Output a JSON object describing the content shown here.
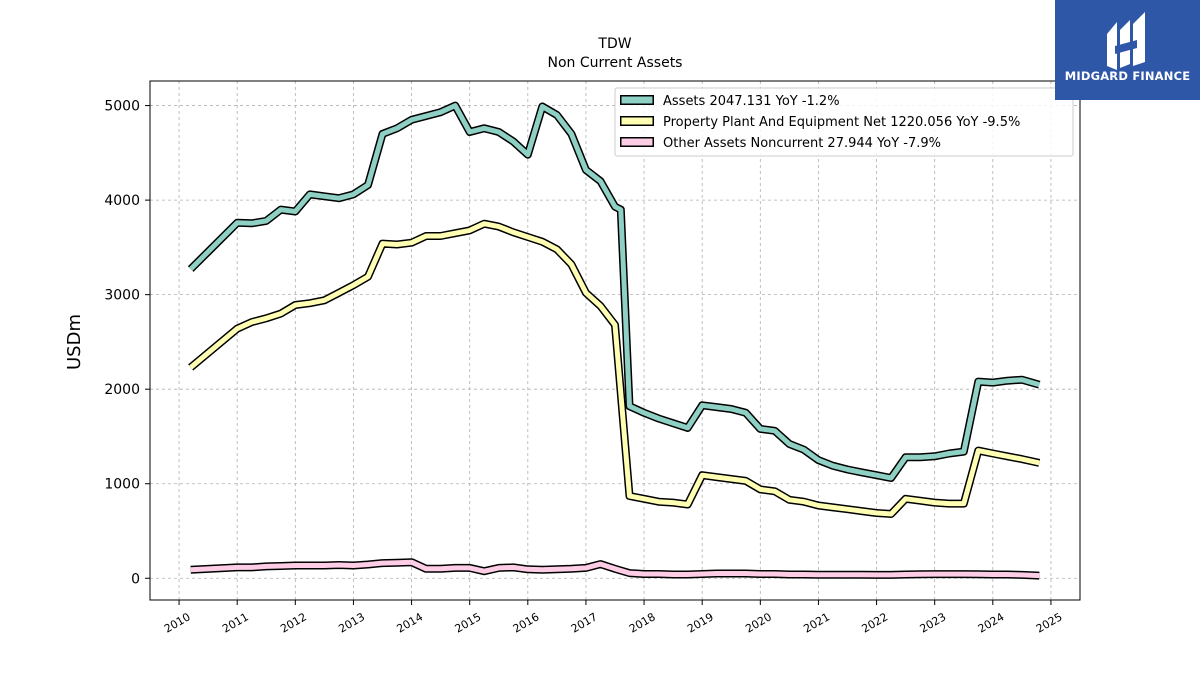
{
  "brand": {
    "name": "MIDGARD FINANCE",
    "color": "#2f57a8"
  },
  "chart_data": {
    "type": "line",
    "title": "TDW",
    "subtitle": "Non Current  Assets",
    "ylabel": "USDm",
    "xlabel": "",
    "xlim": [
      2009.5,
      2025.5
    ],
    "ylim": [
      -230,
      5260
    ],
    "x_ticks": [
      2010,
      2011,
      2012,
      2013,
      2014,
      2015,
      2016,
      2017,
      2018,
      2019,
      2020,
      2021,
      2022,
      2023,
      2024,
      2025
    ],
    "y_ticks": [
      0,
      1000,
      2000,
      3000,
      4000,
      5000
    ],
    "grid": true,
    "legend_position": "top-right",
    "series": [
      {
        "name": "Assets  2047.131 YoY -1.2%",
        "color": "#8ed0c3",
        "x": [
          2010.2,
          2011.0,
          2011.25,
          2011.5,
          2011.75,
          2012.0,
          2012.25,
          2012.5,
          2012.75,
          2013.0,
          2013.25,
          2013.5,
          2013.75,
          2014.0,
          2014.25,
          2014.5,
          2014.75,
          2015.0,
          2015.25,
          2015.5,
          2015.75,
          2016.0,
          2016.25,
          2016.5,
          2016.75,
          2017.0,
          2017.25,
          2017.5,
          2017.6,
          2017.75,
          2018.0,
          2018.25,
          2018.5,
          2018.75,
          2019.0,
          2019.25,
          2019.5,
          2019.75,
          2020.0,
          2020.25,
          2020.5,
          2020.75,
          2021.0,
          2021.25,
          2021.5,
          2021.75,
          2022.0,
          2022.25,
          2022.5,
          2022.75,
          2023.0,
          2023.25,
          2023.5,
          2023.75,
          2024.0,
          2024.25,
          2024.5,
          2024.8
        ],
        "values": [
          3270,
          3760,
          3755,
          3780,
          3900,
          3880,
          4060,
          4040,
          4020,
          4060,
          4160,
          4700,
          4760,
          4850,
          4890,
          4930,
          5000,
          4720,
          4760,
          4720,
          4620,
          4480,
          4990,
          4900,
          4700,
          4320,
          4200,
          3930,
          3900,
          1820,
          1750,
          1690,
          1640,
          1590,
          1830,
          1810,
          1790,
          1750,
          1580,
          1560,
          1420,
          1360,
          1250,
          1190,
          1150,
          1120,
          1090,
          1060,
          1280,
          1280,
          1290,
          1320,
          1340,
          2080,
          2070,
          2090,
          2100,
          2047
        ]
      },
      {
        "name": "Property Plant And Equipment Net  1220.056 YoY -9.5%",
        "color": "#ffffb3",
        "x": [
          2010.2,
          2011.0,
          2011.25,
          2011.5,
          2011.75,
          2012.0,
          2012.25,
          2012.5,
          2012.75,
          2013.0,
          2013.25,
          2013.5,
          2013.75,
          2014.0,
          2014.25,
          2014.5,
          2014.75,
          2015.0,
          2015.25,
          2015.5,
          2015.75,
          2016.0,
          2016.25,
          2016.5,
          2016.75,
          2017.0,
          2017.25,
          2017.5,
          2017.75,
          2018.0,
          2018.25,
          2018.5,
          2018.75,
          2019.0,
          2019.25,
          2019.5,
          2019.75,
          2020.0,
          2020.25,
          2020.5,
          2020.75,
          2021.0,
          2021.25,
          2021.5,
          2021.75,
          2022.0,
          2022.25,
          2022.5,
          2022.75,
          2023.0,
          2023.25,
          2023.5,
          2023.75,
          2024.0,
          2024.25,
          2024.5,
          2024.8
        ],
        "values": [
          2230,
          2640,
          2710,
          2750,
          2800,
          2890,
          2910,
          2940,
          3020,
          3100,
          3190,
          3540,
          3530,
          3550,
          3620,
          3620,
          3650,
          3680,
          3750,
          3720,
          3660,
          3610,
          3560,
          3480,
          3320,
          3020,
          2880,
          2680,
          870,
          840,
          810,
          800,
          780,
          1090,
          1070,
          1050,
          1030,
          940,
          920,
          830,
          810,
          770,
          750,
          730,
          710,
          690,
          680,
          840,
          820,
          800,
          790,
          790,
          1350,
          1320,
          1290,
          1260,
          1220
        ]
      },
      {
        "name": "Other Assets Noncurrent  27.944 YoY -7.9%",
        "color": "#fccde5",
        "x": [
          2010.2,
          2011.0,
          2011.25,
          2011.5,
          2011.75,
          2012.0,
          2012.25,
          2012.5,
          2012.75,
          2013.0,
          2013.25,
          2013.5,
          2013.75,
          2014.0,
          2014.25,
          2014.5,
          2014.75,
          2015.0,
          2015.25,
          2015.5,
          2015.75,
          2016.0,
          2016.25,
          2016.5,
          2016.75,
          2017.0,
          2017.25,
          2017.5,
          2017.75,
          2018.0,
          2018.25,
          2018.5,
          2018.75,
          2019.0,
          2019.25,
          2019.5,
          2019.75,
          2020.0,
          2020.25,
          2020.5,
          2020.75,
          2021.0,
          2021.25,
          2021.5,
          2021.75,
          2022.0,
          2022.25,
          2022.5,
          2022.75,
          2023.0,
          2023.25,
          2023.5,
          2023.75,
          2024.0,
          2024.25,
          2024.5,
          2024.8
        ],
        "values": [
          90,
          115,
          115,
          125,
          130,
          135,
          135,
          135,
          140,
          135,
          145,
          160,
          165,
          170,
          100,
          100,
          110,
          110,
          75,
          110,
          115,
          95,
          90,
          95,
          100,
          110,
          150,
          100,
          55,
          45,
          45,
          40,
          40,
          45,
          50,
          50,
          50,
          45,
          45,
          40,
          40,
          38,
          38,
          38,
          38,
          35,
          35,
          40,
          42,
          44,
          44,
          44,
          42,
          40,
          40,
          35,
          28
        ]
      }
    ]
  }
}
